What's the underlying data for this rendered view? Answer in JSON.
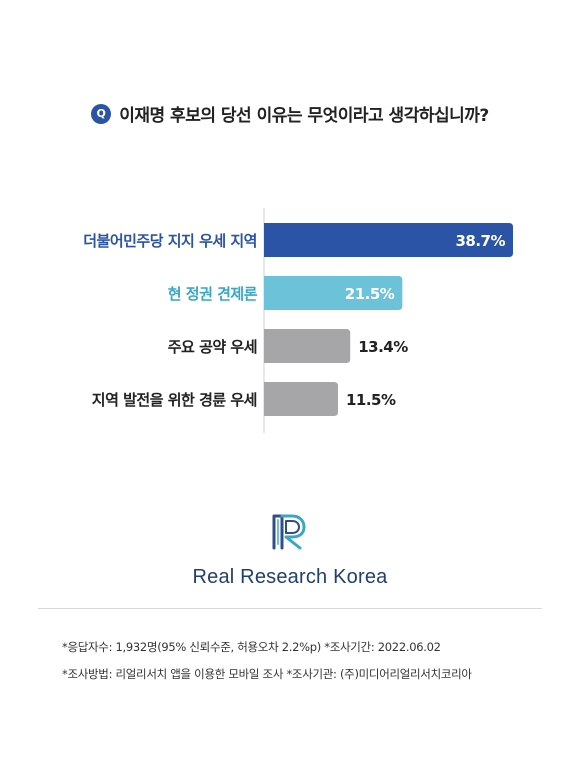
{
  "question": {
    "badge": "Q",
    "text": "이재명 후보의 당선 이유는 무엇이라고 생각하십니까?"
  },
  "chart_data": {
    "type": "bar",
    "orientation": "horizontal",
    "categories": [
      "더불어민주당 지지 우세 지역",
      "현 정권 견제론",
      "주요 공약 우세",
      "지역 발전을 위한 경륜 우세"
    ],
    "values": [
      38.7,
      21.5,
      13.4,
      11.5
    ],
    "value_labels": [
      "38.7%",
      "21.5%",
      "13.4%",
      "11.5%"
    ],
    "bar_colors": [
      "#2b54a6",
      "#6cc3d9",
      "#a6a6a8",
      "#a6a6a8"
    ],
    "label_colors": [
      "#2b54a6",
      "#3aa7c4",
      "#222222",
      "#222222"
    ],
    "value_label_position": [
      "inside",
      "inside",
      "outside",
      "outside"
    ],
    "xlim": [
      0,
      40
    ]
  },
  "logo": {
    "name": "Real Research Korea"
  },
  "footnotes": [
    "*응답자수: 1,932명(95% 신뢰수준, 허용오차 2.2%p)  *조사기간: 2022.06.02",
    "*조사방법: 리얼리서치 앱을 이용한 모바일 조사  *조사기관: (주)미디어리얼리서치코리아"
  ]
}
